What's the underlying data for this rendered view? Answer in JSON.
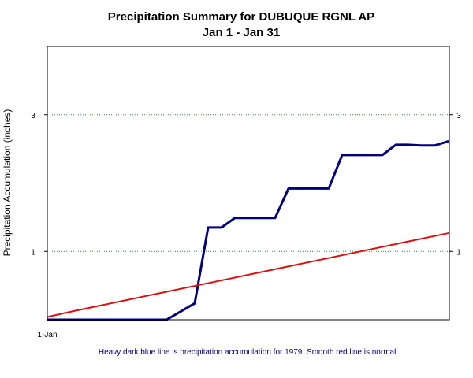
{
  "chart_data": {
    "type": "line",
    "title": "Precipitation Summary for DUBUQUE RGNL AP",
    "subtitle": "Jan 1 - Jan 31",
    "ylabel": "Precipitation Accumulation (inches)",
    "caption": "Heavy dark blue line is precipitation accumulation for 1979. Smooth red line is normal.",
    "x_tick_labels": [
      "1-Jan"
    ],
    "xlim": [
      1,
      31
    ],
    "ylim": [
      0,
      4
    ],
    "y_ticks": [
      1,
      3
    ],
    "gridlines": [
      1,
      2,
      3
    ],
    "grid": true,
    "colors": {
      "accumulation": "#000080",
      "normal": "#dd1111",
      "grid": "#2e8b57"
    },
    "series": [
      {
        "key": "accumulation",
        "x": [
          1,
          9.9,
          12.0,
          13.0,
          14.0,
          15.0,
          18.0,
          19.0,
          22.0,
          23.0,
          26.0,
          27.0,
          27.9,
          28.9,
          29.9,
          30.9,
          31.0
        ],
        "values": [
          0,
          0,
          0.24,
          1.35,
          1.35,
          1.49,
          1.49,
          1.92,
          1.92,
          2.41,
          2.41,
          2.56,
          2.56,
          2.55,
          2.55,
          2.61,
          2.61
        ]
      },
      {
        "key": "normal",
        "x": [
          1,
          2.8,
          31
        ],
        "values": [
          0.04,
          0.12,
          1.27
        ]
      }
    ]
  }
}
